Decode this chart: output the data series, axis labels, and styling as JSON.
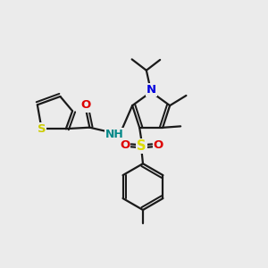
{
  "background_color": "#ebebeb",
  "bond_color": "#1a1a1a",
  "bond_width": 1.6,
  "figsize": [
    3.0,
    3.0
  ],
  "dpi": 100,
  "colors": {
    "S_thio": "#cccc00",
    "S_sulfonyl": "#dddd00",
    "O": "#dd0000",
    "N": "#0000dd",
    "NH": "#008888",
    "C": "#1a1a1a"
  }
}
